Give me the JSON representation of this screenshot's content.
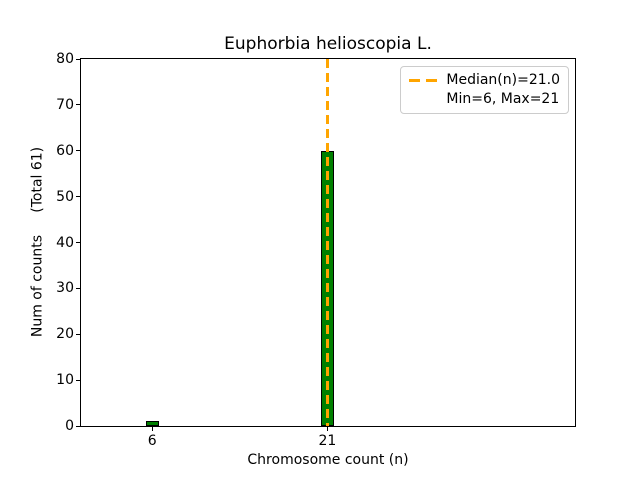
{
  "chart_data": {
    "type": "bar",
    "title": "Euphorbia helioscopia L.",
    "xlabel": "Chromosome count (n)",
    "ylabel": "Num of counts     (Total 61)",
    "total_counts": 61,
    "categories": [
      6,
      21
    ],
    "values": [
      1,
      60
    ],
    "bar_width_units": 1.1,
    "xlim": [
      -0.1,
      42.2
    ],
    "ylim": [
      0,
      80
    ],
    "yticks": [
      0,
      10,
      20,
      30,
      40,
      50,
      60,
      70,
      80
    ],
    "xticks": [
      6,
      21
    ],
    "grid": false,
    "median": {
      "value": 21.0,
      "label": "Median(n)=21.0"
    },
    "min": 6,
    "max": 21,
    "colors": {
      "bar_fill": "#008000",
      "bar_edge": "#000000",
      "median_line": "#FFA500",
      "axis": "#000000",
      "legend_border": "#cccccc"
    },
    "legend": {
      "position": "upper right",
      "rows": [
        {
          "swatch": "orange-dashed-line",
          "label": "Median(n)=21.0"
        },
        {
          "swatch": "none",
          "label": "Min=6, Max=21"
        }
      ]
    }
  }
}
